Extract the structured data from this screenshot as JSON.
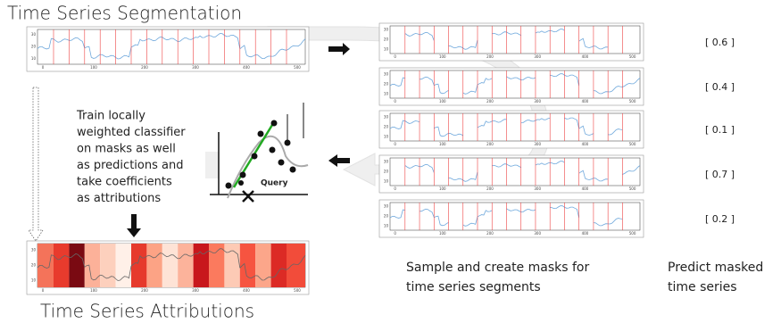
{
  "header": {
    "title": "Time Series Segmentation"
  },
  "footer": {
    "title": "Time Series Attributions"
  },
  "explanation": {
    "lines": [
      "Train locally",
      "weighted classifier",
      "on masks as well",
      "as predictions and",
      "take coefficients",
      "as attributions"
    ]
  },
  "query_label": "Query",
  "samples_caption": {
    "lines": [
      "Sample and create masks for",
      "time series segments"
    ]
  },
  "predictions_caption": {
    "lines": [
      "Predict masked",
      "time series"
    ]
  },
  "predictions": [
    "[ 0.6 ]",
    "[ 0.4 ]",
    "[ 0.1 ]",
    "[ 0.7 ]",
    "[ 0.2 ]"
  ],
  "axis": {
    "yticks": [
      30,
      20,
      10
    ],
    "xticks": [
      0,
      100,
      200,
      300,
      400,
      500
    ]
  }
}
